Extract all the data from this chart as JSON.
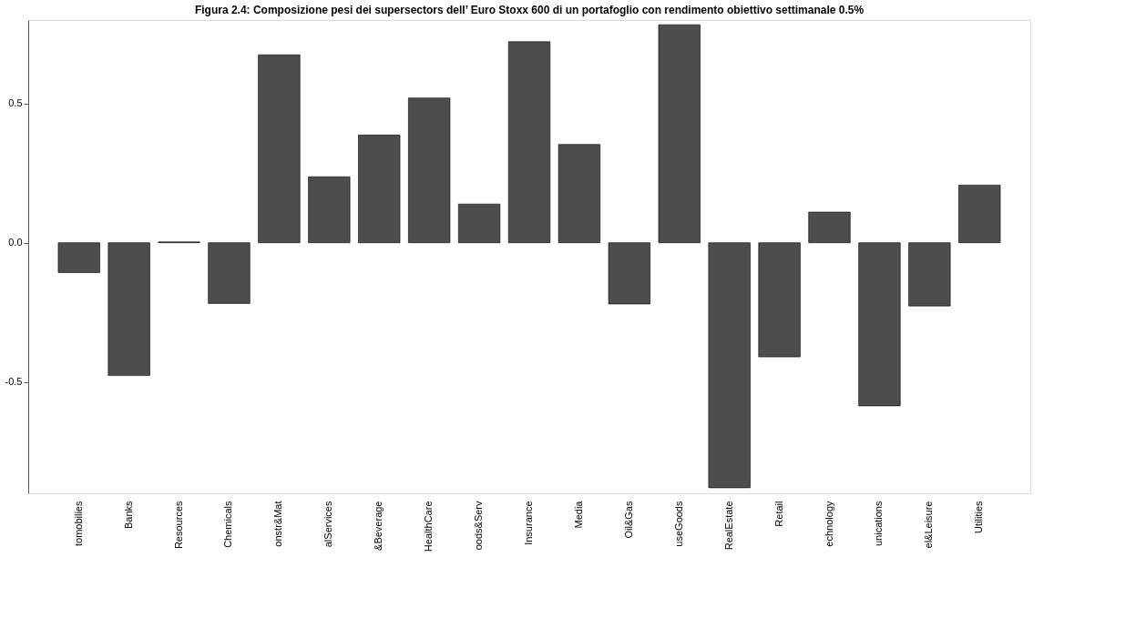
{
  "chart_data": {
    "type": "bar",
    "title": "Figura 2.4: Composizione pesi dei supersectors dell’ Euro Stoxx 600 di un portafoglio con rendimento obiettivo settimanale 0.5%",
    "categories": [
      "tomobilies",
      "Banks",
      "Resources",
      "Chemicals",
      "onstr&Mat",
      "alServices",
      "&Beverage",
      "HealthCare",
      "oods&Serv",
      "Insurance",
      "Media",
      "Oil&Gas",
      "useGoods",
      "RealEstate",
      "Retail",
      "echnology",
      "unications",
      "el&Leisure",
      "Utilities"
    ],
    "values": [
      -0.107,
      -0.477,
      0.003,
      -0.218,
      0.675,
      0.237,
      0.387,
      0.52,
      0.139,
      0.722,
      0.353,
      -0.22,
      0.783,
      -0.88,
      -0.41,
      0.11,
      -0.586,
      -0.227,
      0.207
    ],
    "color": "#4d4d4d",
    "ylim": [
      -0.9,
      0.8
    ],
    "yticks": [
      -0.5,
      {
        "value": 0,
        "label": "0.0"
      },
      0.5
    ],
    "grid": false
  }
}
